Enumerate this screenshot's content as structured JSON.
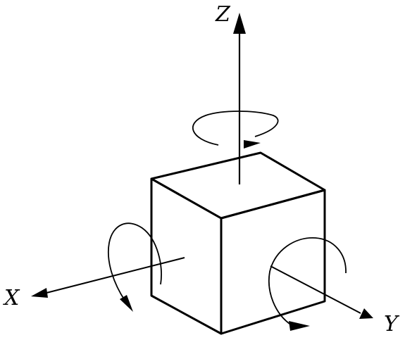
{
  "axes": {
    "x": {
      "label": "X"
    },
    "y": {
      "label": "Y"
    },
    "z": {
      "label": "Z"
    }
  },
  "style": {
    "ink": "#000000",
    "background": "#ffffff"
  },
  "parts": {
    "cube": "cube",
    "rotations": [
      "rotation-about-x",
      "rotation-about-y",
      "rotation-about-z"
    ]
  }
}
